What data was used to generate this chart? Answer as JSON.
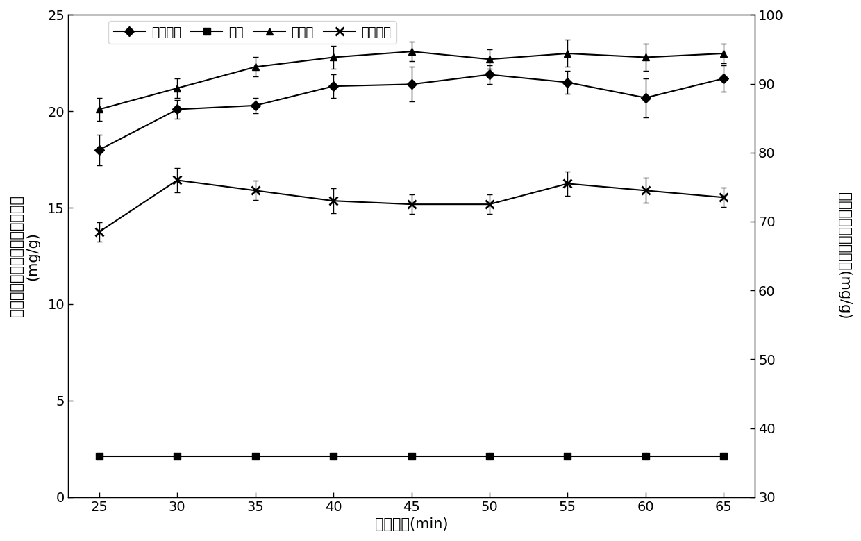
{
  "x": [
    25,
    30,
    35,
    40,
    45,
    50,
    55,
    60,
    65
  ],
  "series1_label": "原花青素",
  "series1_y": [
    18.0,
    20.1,
    20.3,
    21.3,
    21.4,
    21.9,
    21.5,
    20.7,
    21.7
  ],
  "series1_err": [
    0.8,
    0.5,
    0.4,
    0.6,
    0.9,
    0.5,
    0.6,
    1.0,
    0.7
  ],
  "series2_label": "黄酮",
  "series2_y": [
    2.1,
    2.1,
    2.1,
    2.1,
    2.1,
    2.1,
    2.1,
    2.1,
    2.1
  ],
  "series2_err": [
    0.05,
    0.05,
    0.05,
    0.05,
    0.05,
    0.05,
    0.05,
    0.05,
    0.05
  ],
  "series3_label": "萤内酯",
  "series3_y": [
    20.1,
    21.2,
    22.3,
    22.8,
    23.1,
    22.7,
    23.0,
    22.8,
    23.0
  ],
  "series3_err": [
    0.6,
    0.5,
    0.5,
    0.6,
    0.5,
    0.5,
    0.7,
    0.7,
    0.5
  ],
  "series4_label": "聚戊烯醇",
  "series4_right_y": [
    68.5,
    76.0,
    74.5,
    73.0,
    72.5,
    72.5,
    75.5,
    74.5,
    73.5
  ],
  "series4_right_err": [
    1.4,
    1.8,
    1.4,
    1.8,
    1.4,
    1.4,
    1.8,
    1.8,
    1.4
  ],
  "xlabel": "提取时间(min)",
  "ylabel_left": "原花青素、黄酮、萤内酯提取率\n(mg/g)",
  "ylabel_right": "聚戊烯乙酸酯提取率(mg/g)",
  "ylim_left": [
    0,
    25
  ],
  "ylim_right": [
    30,
    100
  ],
  "yticks_left": [
    0,
    5,
    10,
    15,
    20,
    25
  ],
  "yticks_right": [
    30,
    40,
    50,
    60,
    70,
    80,
    90,
    100
  ],
  "color": "#000000",
  "marker1": "D",
  "marker2": "s",
  "marker3": "^",
  "marker4": "x",
  "linewidth": 1.5,
  "markersize": 7,
  "fontsize_tick": 14,
  "fontsize_label": 15,
  "fontsize_legend": 13
}
